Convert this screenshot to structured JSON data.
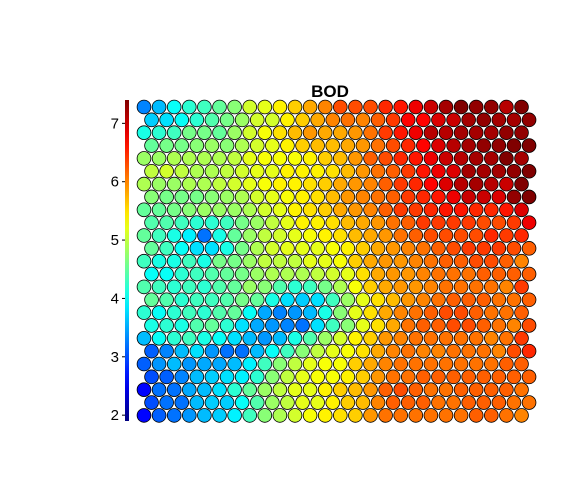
{
  "chart_data": {
    "type": "heatmap",
    "subtype": "som-hexagonal-component-plane",
    "title": "BOD",
    "xlabel": "",
    "ylabel": "",
    "grid": false,
    "legend": "none",
    "colorbar": {
      "placement": "left",
      "colormap": "jet",
      "vmin": 1.9,
      "vmax": 7.4,
      "ticks": [
        2,
        3,
        4,
        5,
        6,
        7
      ]
    },
    "rows": 25,
    "cols": 26,
    "values": [
      [
        3.3,
        3.6,
        4.0,
        4.2,
        4.3,
        4.5,
        4.7,
        5.1,
        5.2,
        5.4,
        5.6,
        5.8,
        6.0,
        6.3,
        6.3,
        6.3,
        6.5,
        6.6,
        6.8,
        7.0,
        7.2,
        7.4,
        7.3,
        7.3,
        7.1,
        7.5
      ],
      [
        3.7,
        3.8,
        4.0,
        4.2,
        4.4,
        4.6,
        4.8,
        5.1,
        5.1,
        5.4,
        5.6,
        5.8,
        6.0,
        6.1,
        6.0,
        6.2,
        6.4,
        6.7,
        6.7,
        6.9,
        7.0,
        7.2,
        7.3,
        7.2,
        7.2,
        7.3
      ],
      [
        4.1,
        4.2,
        4.3,
        4.6,
        4.6,
        4.5,
        4.8,
        5.1,
        5.3,
        5.5,
        5.7,
        5.9,
        5.8,
        5.8,
        5.9,
        6.1,
        6.4,
        6.6,
        6.8,
        7.1,
        7.1,
        7.2,
        7.2,
        7.2,
        7.3,
        7.3
      ],
      [
        4.5,
        4.6,
        4.6,
        4.7,
        4.8,
        4.7,
        4.9,
        5.1,
        5.2,
        5.4,
        5.6,
        5.7,
        5.7,
        5.8,
        5.9,
        6.1,
        6.3,
        6.5,
        6.7,
        6.9,
        7.1,
        7.2,
        7.3,
        7.3,
        7.4,
        7.4
      ],
      [
        4.8,
        4.8,
        4.9,
        4.9,
        4.9,
        4.9,
        5.0,
        5.2,
        5.3,
        5.3,
        5.3,
        5.4,
        5.6,
        5.7,
        5.9,
        6.2,
        6.3,
        6.5,
        6.6,
        6.8,
        7.0,
        7.1,
        7.2,
        7.2,
        7.4,
        7.2
      ],
      [
        5.0,
        5.1,
        5.0,
        4.9,
        4.9,
        5.0,
        5.1,
        5.2,
        5.2,
        5.4,
        5.4,
        5.4,
        5.5,
        5.7,
        5.9,
        6.1,
        6.2,
        6.4,
        6.6,
        6.8,
        6.9,
        7.2,
        7.2,
        7.2,
        7.3,
        7.5
      ],
      [
        4.9,
        4.8,
        4.8,
        4.9,
        4.9,
        5.0,
        5.1,
        5.2,
        5.3,
        5.4,
        5.4,
        5.5,
        5.6,
        5.8,
        5.9,
        6.0,
        6.2,
        6.4,
        6.5,
        6.7,
        6.9,
        7.1,
        7.2,
        7.1,
        7.0,
        7.6
      ],
      [
        4.7,
        4.6,
        4.6,
        4.6,
        4.7,
        4.8,
        4.9,
        5.1,
        5.2,
        5.3,
        5.4,
        5.5,
        5.7,
        5.9,
        6.0,
        6.1,
        6.2,
        6.4,
        6.5,
        6.6,
        6.8,
        7.0,
        7.0,
        6.9,
        7.3,
        7.4
      ],
      [
        4.5,
        4.5,
        4.6,
        4.7,
        4.8,
        4.8,
        4.8,
        4.9,
        5.1,
        5.2,
        5.4,
        5.5,
        5.6,
        5.8,
        5.9,
        6.0,
        6.2,
        6.4,
        6.4,
        6.5,
        6.6,
        6.6,
        6.5,
        6.5,
        6.6,
        6.9
      ],
      [
        4.4,
        4.4,
        4.3,
        4.2,
        4.2,
        4.3,
        4.6,
        4.8,
        5.0,
        5.2,
        5.4,
        5.4,
        5.5,
        5.7,
        5.8,
        5.9,
        6.1,
        6.2,
        6.4,
        6.4,
        6.4,
        6.4,
        6.3,
        6.3,
        6.4,
        6.8
      ],
      [
        4.5,
        4.3,
        4.1,
        3.9,
        3.2,
        4.1,
        4.5,
        4.8,
        5.0,
        5.1,
        5.2,
        5.3,
        5.4,
        5.5,
        5.7,
        5.8,
        5.9,
        6.1,
        6.2,
        6.3,
        6.3,
        6.3,
        6.3,
        6.5,
        6.4,
        6.5
      ],
      [
        4.5,
        4.3,
        4.0,
        3.8,
        3.8,
        4.1,
        4.6,
        4.9,
        5.1,
        5.2,
        5.2,
        5.2,
        5.3,
        5.4,
        5.6,
        5.8,
        5.9,
        6.0,
        6.1,
        6.2,
        6.3,
        6.4,
        6.4,
        6.4,
        6.3,
        6.2
      ],
      [
        4.3,
        4.1,
        4.1,
        4.3,
        4.1,
        4.6,
        4.6,
        4.8,
        5.0,
        5.0,
        5.0,
        5.2,
        5.2,
        5.3,
        5.6,
        5.8,
        5.9,
        5.9,
        6.0,
        6.1,
        6.2,
        6.2,
        6.3,
        6.3,
        6.2,
        6.0
      ],
      [
        4.0,
        4.0,
        4.2,
        4.3,
        4.4,
        4.5,
        4.6,
        4.8,
        4.9,
        4.9,
        4.9,
        5.0,
        5.1,
        5.2,
        5.5,
        5.8,
        5.9,
        5.9,
        6.0,
        6.1,
        6.1,
        6.1,
        6.2,
        6.2,
        6.2,
        6.2
      ],
      [
        4.4,
        4.3,
        4.2,
        4.3,
        4.2,
        4.4,
        4.5,
        4.8,
        4.7,
        4.4,
        4.2,
        4.3,
        4.6,
        4.9,
        5.3,
        5.6,
        5.8,
        5.9,
        5.9,
        6.0,
        6.1,
        6.1,
        6.1,
        6.1,
        6.0,
        6.4
      ],
      [
        4.5,
        4.4,
        4.2,
        4.3,
        4.3,
        4.4,
        4.6,
        4.5,
        4.1,
        3.8,
        3.7,
        3.8,
        4.3,
        4.8,
        5.2,
        5.5,
        5.7,
        5.9,
        6.0,
        6.1,
        6.2,
        6.2,
        6.2,
        6.1,
        6.1,
        6.2
      ],
      [
        4.2,
        4.0,
        4.2,
        4.3,
        4.2,
        4.4,
        4.5,
        4.0,
        3.5,
        3.3,
        3.4,
        3.6,
        4.1,
        4.7,
        5.2,
        5.5,
        5.8,
        6.0,
        6.1,
        6.2,
        6.3,
        6.3,
        6.2,
        6.1,
        6.1,
        6.2
      ],
      [
        4.1,
        4.2,
        4.1,
        4.4,
        4.5,
        4.2,
        3.8,
        3.5,
        3.4,
        3.3,
        3.2,
        3.8,
        4.3,
        4.7,
        5.2,
        5.5,
        5.8,
        6.1,
        6.2,
        6.2,
        6.3,
        6.3,
        6.2,
        6.1,
        6.0,
        6.3
      ],
      [
        3.6,
        4.0,
        4.2,
        4.3,
        4.1,
        4.0,
        3.8,
        3.6,
        3.4,
        3.6,
        4.1,
        4.4,
        4.8,
        5.1,
        5.4,
        5.6,
        5.9,
        6.0,
        6.1,
        6.1,
        6.1,
        6.1,
        6.1,
        6.0,
        6.1,
        6.4
      ],
      [
        3.1,
        3.3,
        3.6,
        3.8,
        3.4,
        3.2,
        3.2,
        3.6,
        4.0,
        4.3,
        4.7,
        5.0,
        5.2,
        5.3,
        5.5,
        5.8,
        6.0,
        6.1,
        6.0,
        6.0,
        6.1,
        6.1,
        6.1,
        6.0,
        6.3,
        6.5
      ],
      [
        3.1,
        3.4,
        3.6,
        3.4,
        3.5,
        3.5,
        3.6,
        3.9,
        4.3,
        4.7,
        5.0,
        5.2,
        5.3,
        5.3,
        5.6,
        5.8,
        6.0,
        6.1,
        6.1,
        6.1,
        6.1,
        6.1,
        6.1,
        6.1,
        6.2,
        6.2
      ],
      [
        3.0,
        3.1,
        3.3,
        3.6,
        3.7,
        3.8,
        3.9,
        4.2,
        4.7,
        5.0,
        5.2,
        5.3,
        5.3,
        5.4,
        5.6,
        5.9,
        6.1,
        6.1,
        6.2,
        6.2,
        6.2,
        6.2,
        6.2,
        6.2,
        6.2,
        6.2
      ],
      [
        2.6,
        3.2,
        3.2,
        3.5,
        3.6,
        3.8,
        4.2,
        4.5,
        4.8,
        5.0,
        5.2,
        5.2,
        5.4,
        5.6,
        5.7,
        5.9,
        6.2,
        6.3,
        6.2,
        6.1,
        6.1,
        6.2,
        6.2,
        6.2,
        6.2,
        6.1
      ],
      [
        3.0,
        3.2,
        3.2,
        3.6,
        3.7,
        3.7,
        4.0,
        4.4,
        4.8,
        5.0,
        5.2,
        5.2,
        5.4,
        5.6,
        5.7,
        6.0,
        6.2,
        6.2,
        6.2,
        6.1,
        6.1,
        6.2,
        6.2,
        6.2,
        6.1,
        6.1
      ],
      [
        2.6,
        3.1,
        3.2,
        3.4,
        3.6,
        3.7,
        3.9,
        4.3,
        4.7,
        4.9,
        5.1,
        5.3,
        5.4,
        5.5,
        5.6,
        5.9,
        6.1,
        6.1,
        6.1,
        6.1,
        6.1,
        6.1,
        6.2,
        6.2,
        6.1,
        6.0
      ]
    ]
  }
}
